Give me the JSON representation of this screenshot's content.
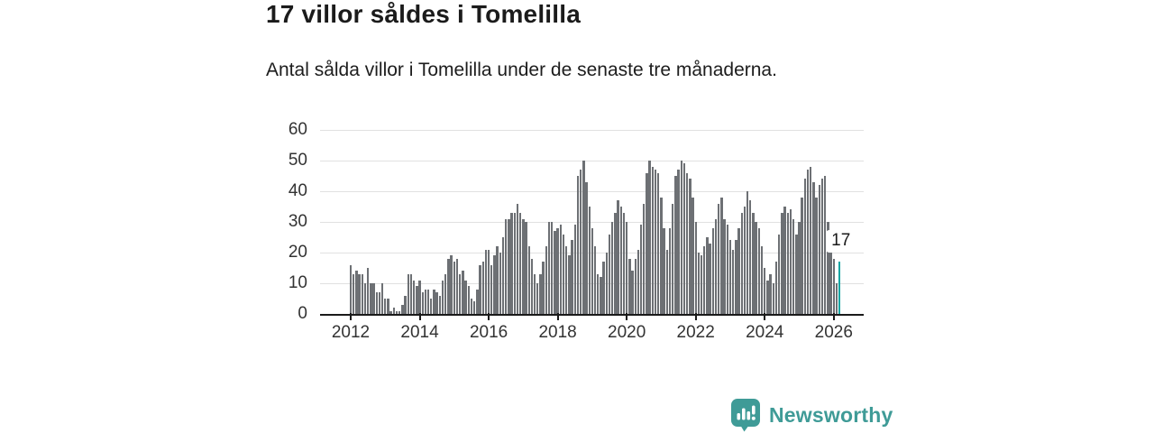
{
  "header": {
    "title": "17 villor såldes i Tomelilla",
    "subtitle": "Antal sålda villor i Tomelilla under de senaste tre månaderna."
  },
  "chart_data": {
    "type": "bar",
    "title": "17 villor såldes i Tomelilla",
    "subtitle": "Antal sålda villor i Tomelilla under de senaste tre månaderna.",
    "x_start": "2012-01",
    "x_end": "2026-03",
    "interval": "monthly",
    "values": [
      16,
      13,
      14,
      13,
      13,
      10,
      15,
      10,
      10,
      7,
      7,
      10,
      5,
      5,
      1,
      2,
      1,
      1,
      3,
      6,
      13,
      13,
      11,
      9,
      11,
      7,
      8,
      8,
      5,
      8,
      7,
      6,
      11,
      13,
      18,
      19,
      17,
      18,
      13,
      14,
      11,
      9,
      5,
      4,
      8,
      16,
      17,
      21,
      21,
      16,
      19,
      22,
      20,
      25,
      31,
      31,
      33,
      33,
      36,
      33,
      31,
      30,
      22,
      18,
      13,
      10,
      13,
      17,
      22,
      30,
      30,
      27,
      28,
      29,
      26,
      22,
      19,
      24,
      29,
      45,
      47,
      50,
      43,
      35,
      28,
      22,
      13,
      12,
      17,
      20,
      26,
      30,
      33,
      37,
      35,
      33,
      30,
      18,
      14,
      18,
      21,
      29,
      36,
      46,
      50,
      48,
      47,
      46,
      38,
      28,
      21,
      28,
      36,
      45,
      47,
      50,
      49,
      46,
      44,
      38,
      30,
      20,
      19,
      22,
      25,
      23,
      28,
      31,
      36,
      38,
      31,
      29,
      24,
      21,
      24,
      28,
      33,
      35,
      40,
      37,
      33,
      30,
      28,
      22,
      15,
      11,
      13,
      10,
      17,
      26,
      33,
      35,
      33,
      34,
      31,
      26,
      30,
      38,
      44,
      47,
      48,
      43,
      38,
      42,
      44,
      45,
      30,
      24,
      18,
      10,
      17
    ],
    "highlighted_last_value": 17,
    "highlight_label": "17",
    "ylim": [
      0,
      60
    ],
    "y_ticks": [
      0,
      10,
      20,
      30,
      40,
      50,
      60
    ],
    "x_tick_labels": [
      "2012",
      "2014",
      "2016",
      "2018",
      "2020",
      "2022",
      "2024",
      "2026"
    ],
    "grid": "horizontal",
    "legend": "none",
    "bar_color": "#6d7074",
    "highlight_color": "#14a5a3"
  },
  "branding": {
    "name": "Newsworthy",
    "icon": "newsworthy-speech-bubble-chart-icon",
    "color": "#3f9b97"
  }
}
